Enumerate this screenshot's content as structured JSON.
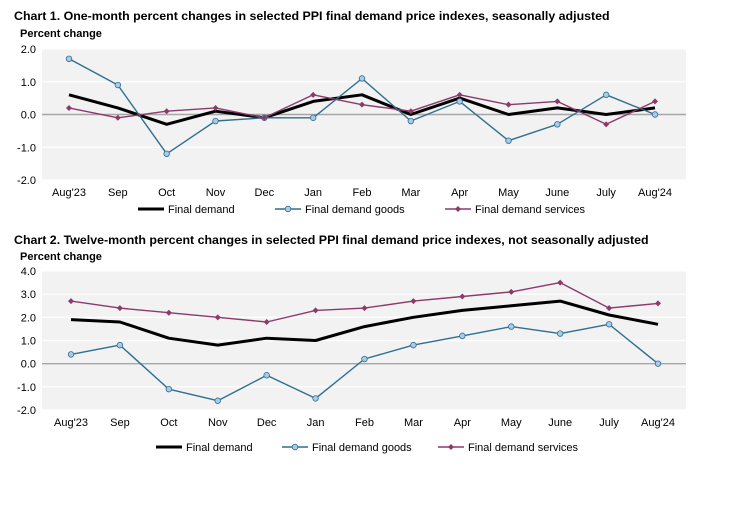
{
  "charts": [
    {
      "title": "Chart 1. One-month percent changes in selected PPI final demand price indexes, seasonally adjusted"
    },
    {
      "title": "Chart 2. Twelve-month percent changes in selected PPI final demand price indexes, not seasonally adjusted"
    }
  ],
  "colors": {
    "final_demand": "#000000",
    "final_demand_goods": "#2e6f8e",
    "final_demand_goods_marker": "#a9cbe8",
    "final_demand_services": "#8b3a6a",
    "plot_background": "#f2f2f2",
    "gridline": "#ffffff",
    "zero_line": "#a6a6a6"
  },
  "chart_data": [
    {
      "type": "line",
      "title": "Chart 1. One-month percent changes in selected PPI final demand price indexes, seasonally adjusted",
      "ylabel": "Percent change",
      "xlabel": "",
      "ylim": [
        -2.0,
        2.0
      ],
      "yticks": [
        "2.0",
        "1.0",
        "0.0",
        "-1.0",
        "-2.0"
      ],
      "categories": [
        "Aug'23",
        "Sep",
        "Oct",
        "Nov",
        "Dec",
        "Jan",
        "Feb",
        "Mar",
        "Apr",
        "May",
        "June",
        "July",
        "Aug'24"
      ],
      "grid": "horizontal",
      "legend": "bottom",
      "series": [
        {
          "name": "Final demand",
          "values": [
            0.6,
            0.2,
            -0.3,
            0.1,
            -0.1,
            0.4,
            0.6,
            0.0,
            0.5,
            0.0,
            0.2,
            0.0,
            0.2
          ]
        },
        {
          "name": "Final demand goods",
          "values": [
            1.7,
            0.9,
            -1.2,
            -0.2,
            -0.1,
            -0.1,
            1.1,
            -0.2,
            0.4,
            -0.8,
            -0.3,
            0.6,
            0.0
          ]
        },
        {
          "name": "Final demand services",
          "values": [
            0.2,
            -0.1,
            0.1,
            0.2,
            -0.1,
            0.6,
            0.3,
            0.1,
            0.6,
            0.3,
            0.4,
            -0.3,
            0.4
          ]
        }
      ]
    },
    {
      "type": "line",
      "title": "Chart 2. Twelve-month percent changes in selected PPI final demand price indexes, not seasonally adjusted",
      "ylabel": "Percent change",
      "xlabel": "",
      "ylim": [
        -2.0,
        4.0
      ],
      "yticks": [
        "4.0",
        "3.0",
        "2.0",
        "1.0",
        "0.0",
        "-1.0",
        "-2.0"
      ],
      "categories": [
        "Aug'23",
        "Sep",
        "Oct",
        "Nov",
        "Dec",
        "Jan",
        "Feb",
        "Mar",
        "Apr",
        "May",
        "June",
        "July",
        "Aug'24"
      ],
      "grid": "horizontal",
      "legend": "bottom",
      "series": [
        {
          "name": "Final demand",
          "values": [
            1.9,
            1.8,
            1.1,
            0.8,
            1.1,
            1.0,
            1.6,
            2.0,
            2.3,
            2.5,
            2.7,
            2.1,
            1.7
          ]
        },
        {
          "name": "Final demand goods",
          "values": [
            0.4,
            0.8,
            -1.1,
            -1.6,
            -0.5,
            -1.5,
            0.2,
            0.8,
            1.2,
            1.6,
            1.3,
            1.7,
            0.0
          ]
        },
        {
          "name": "Final demand services",
          "values": [
            2.7,
            2.4,
            2.2,
            2.0,
            1.8,
            2.3,
            2.4,
            2.7,
            2.9,
            3.1,
            3.5,
            2.4,
            2.6
          ]
        }
      ]
    }
  ]
}
